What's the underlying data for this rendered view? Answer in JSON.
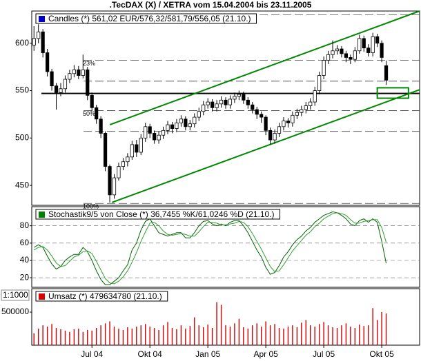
{
  "chart_data": {
    "title": ".TecDAX (X) / XETRA vom 15.04.2004 bis 23.11.2005",
    "categories": [
      null,
      null,
      null,
      null,
      null,
      null,
      null,
      null,
      null,
      null,
      null,
      null,
      null,
      "Jul 04",
      null,
      null,
      null,
      null,
      null,
      null,
      null,
      null,
      null,
      null,
      null,
      null,
      "Okt 04",
      null,
      null,
      null,
      null,
      null,
      null,
      null,
      null,
      null,
      null,
      null,
      null,
      "Jan 05",
      null,
      null,
      null,
      null,
      null,
      null,
      null,
      null,
      null,
      null,
      null,
      null,
      "Apr 05",
      null,
      null,
      null,
      null,
      null,
      null,
      null,
      null,
      null,
      null,
      null,
      null,
      "Jul 05",
      null,
      null,
      null,
      null,
      null,
      null,
      null,
      null,
      null,
      null,
      null,
      null,
      "Okt 05",
      null,
      null,
      null,
      null,
      null,
      null,
      null,
      null
    ],
    "panels": [
      {
        "type": "candlestick",
        "legend": "Candles (*) 561,02 EUR/576,32/581,79/556,05 (21.10.)",
        "legend_color": "#0000cc",
        "up_color": "#ffffff",
        "down_color": "#000000",
        "ylim": [
          429,
          634
        ],
        "yticks": [
          450,
          500,
          550,
          600
        ],
        "open": [
          598,
          605,
          612,
          590,
          570,
          555,
          548,
          552,
          562,
          568,
          572,
          566,
          572,
          545,
          532,
          520,
          505,
          470,
          440,
          458,
          470,
          475,
          480,
          493,
          485,
          500,
          512,
          505,
          498,
          503,
          508,
          514,
          510,
          516,
          520,
          512,
          515,
          522,
          528,
          535,
          538,
          532,
          536,
          540,
          535,
          541,
          544,
          546,
          540,
          535,
          530,
          525,
          522,
          508,
          498,
          505,
          512,
          518,
          516,
          524,
          527,
          530,
          534,
          538,
          550,
          566,
          582,
          588,
          592,
          594,
          589,
          585,
          583,
          592,
          605,
          595,
          590,
          607,
          600,
          576.32,
          null,
          null,
          null,
          null,
          null,
          null,
          null
        ],
        "high": [
          618,
          620,
          615,
          594,
          573,
          558,
          558,
          566,
          572,
          577,
          576,
          588,
          575,
          548,
          535,
          523,
          507,
          472,
          462,
          474,
          479,
          484,
          497,
          498,
          504,
          516,
          515,
          508,
          507,
          512,
          518,
          517,
          520,
          524,
          523,
          519,
          526,
          532,
          539,
          542,
          541,
          540,
          544,
          543,
          545,
          548,
          550,
          549,
          543,
          538,
          533,
          528,
          524,
          511,
          509,
          516,
          522,
          521,
          528,
          531,
          534,
          538,
          542,
          554,
          570,
          586,
          592,
          603,
          598,
          597,
          592,
          588,
          596,
          609,
          608,
          599,
          611,
          610,
          603,
          581.79,
          null,
          null,
          null,
          null,
          null,
          null,
          null
        ],
        "low": [
          592,
          600,
          585,
          565,
          550,
          530,
          544,
          548,
          558,
          564,
          562,
          563,
          540,
          528,
          515,
          500,
          465,
          432,
          436,
          455,
          466,
          470,
          477,
          480,
          482,
          496,
          500,
          494,
          494,
          499,
          504,
          505,
          506,
          512,
          508,
          508,
          511,
          518,
          524,
          531,
          528,
          528,
          532,
          531,
          531,
          537,
          540,
          536,
          531,
          526,
          520,
          516,
          503,
          493,
          494,
          501,
          508,
          511,
          512,
          520,
          523,
          526,
          530,
          534,
          546,
          562,
          578,
          584,
          588,
          585,
          580,
          578,
          580,
          589,
          591,
          586,
          586,
          596,
          580,
          556.05,
          null,
          null,
          null,
          null,
          null,
          null,
          null
        ],
        "close": [
          605,
          612,
          590,
          570,
          555,
          548,
          552,
          562,
          568,
          572,
          566,
          572,
          545,
          532,
          520,
          505,
          470,
          440,
          458,
          470,
          475,
          480,
          493,
          485,
          500,
          512,
          505,
          498,
          503,
          508,
          514,
          510,
          516,
          520,
          512,
          515,
          522,
          528,
          535,
          538,
          532,
          536,
          540,
          535,
          541,
          544,
          546,
          540,
          535,
          530,
          525,
          522,
          508,
          498,
          505,
          512,
          518,
          516,
          524,
          527,
          530,
          534,
          538,
          550,
          566,
          582,
          588,
          592,
          594,
          589,
          585,
          583,
          592,
          605,
          595,
          590,
          607,
          600,
          585,
          561.02,
          null,
          null,
          null,
          null,
          null,
          null,
          null
        ],
        "levels": [
          630,
          {
            "value": 582,
            "label": "23%"
          },
          560,
          {
            "value": 529,
            "label": "50%"
          },
          507,
          {
            "value": 431,
            "label": "100%"
          }
        ],
        "support": 547,
        "trend_color": "#008800",
        "trend_lines": [
          {
            "x": [
              17,
              86.5
            ],
            "values": [
              514,
              634
            ]
          },
          {
            "x": [
              17.5,
              86.5
            ],
            "values": [
              432,
              551
            ]
          }
        ],
        "box": {
          "x": [
            77,
            84
          ],
          "y": [
            542,
            553
          ]
        }
      },
      {
        "type": "line",
        "legend": "Stochastik9/5 von Close (*) 36,7455 %K/61,0246 %D (21.10.)",
        "legend_color": "#008000",
        "ylim": [
          9,
          102
        ],
        "yticks": [
          20,
          40,
          60,
          80
        ],
        "series": [
          {
            "color": "#006000",
            "values": [
              55,
              58,
              55,
              45,
              36,
              30,
              33,
              40,
              44,
              47,
              47,
              55,
              50,
              40,
              28,
              18,
              12,
              12,
              16,
              20,
              28,
              35,
              52,
              60,
              75,
              85,
              88,
              80,
              72,
              70,
              68,
              70,
              72,
              72,
              66,
              66,
              72,
              80,
              85,
              86,
              82,
              80,
              82,
              80,
              84,
              86,
              86,
              80,
              72,
              62,
              52,
              44,
              32,
              24,
              26,
              34,
              44,
              50,
              58,
              64,
              68,
              74,
              78,
              84,
              88,
              92,
              94,
              96,
              95,
              92,
              88,
              82,
              80,
              86,
              88,
              84,
              88,
              84,
              62,
              36.7455,
              null,
              null,
              null,
              null,
              null,
              null,
              null
            ]
          },
          {
            "color": "#30a030",
            "values": [
              52,
              55,
              56,
              52,
              45,
              37,
              33,
              34,
              39,
              44,
              46,
              50,
              51,
              48,
              39,
              29,
              19,
              14,
              13,
              16,
              21,
              28,
              38,
              49,
              62,
              73,
              83,
              84,
              80,
              74,
              70,
              69,
              70,
              71,
              70,
              68,
              68,
              73,
              79,
              84,
              84,
              83,
              81,
              81,
              82,
              83,
              85,
              84,
              79,
              71,
              62,
              53,
              43,
              33,
              27,
              28,
              35,
              43,
              51,
              57,
              63,
              69,
              73,
              79,
              83,
              88,
              91,
              94,
              95,
              94,
              92,
              87,
              83,
              83,
              85,
              86,
              87,
              87,
              78,
              61.0246,
              null,
              null,
              null,
              null,
              null,
              null,
              null
            ]
          }
        ]
      },
      {
        "type": "bar",
        "legend": "Umsatz (*) 479634780 (21.10.)",
        "legend_color": "#dd0000",
        "scale_label": "1:1000",
        "color": "#cc0000",
        "ylim": [
          0,
          854000
        ],
        "yticks": [
          500000
        ],
        "values": [
          180000,
          250000,
          300000,
          280000,
          320000,
          260000,
          240000,
          220000,
          200000,
          240000,
          250000,
          200000,
          230000,
          220000,
          260000,
          300000,
          330000,
          360000,
          280000,
          250000,
          230000,
          270000,
          250000,
          280000,
          300000,
          320000,
          280000,
          260000,
          230000,
          300000,
          350000,
          260000,
          240000,
          300000,
          250000,
          290000,
          420000,
          300000,
          270000,
          310000,
          260000,
          650000,
          610000,
          300000,
          280000,
          330000,
          400000,
          270000,
          250000,
          300000,
          330000,
          280000,
          360000,
          300000,
          320000,
          260000,
          250000,
          280000,
          300000,
          270000,
          340000,
          380000,
          300000,
          280000,
          320000,
          350000,
          300000,
          270000,
          260000,
          300000,
          330000,
          280000,
          260000,
          310000,
          290000,
          300000,
          560000,
          380000,
          500000,
          479634.78,
          null,
          null,
          null,
          null,
          null,
          null,
          null
        ]
      }
    ]
  }
}
